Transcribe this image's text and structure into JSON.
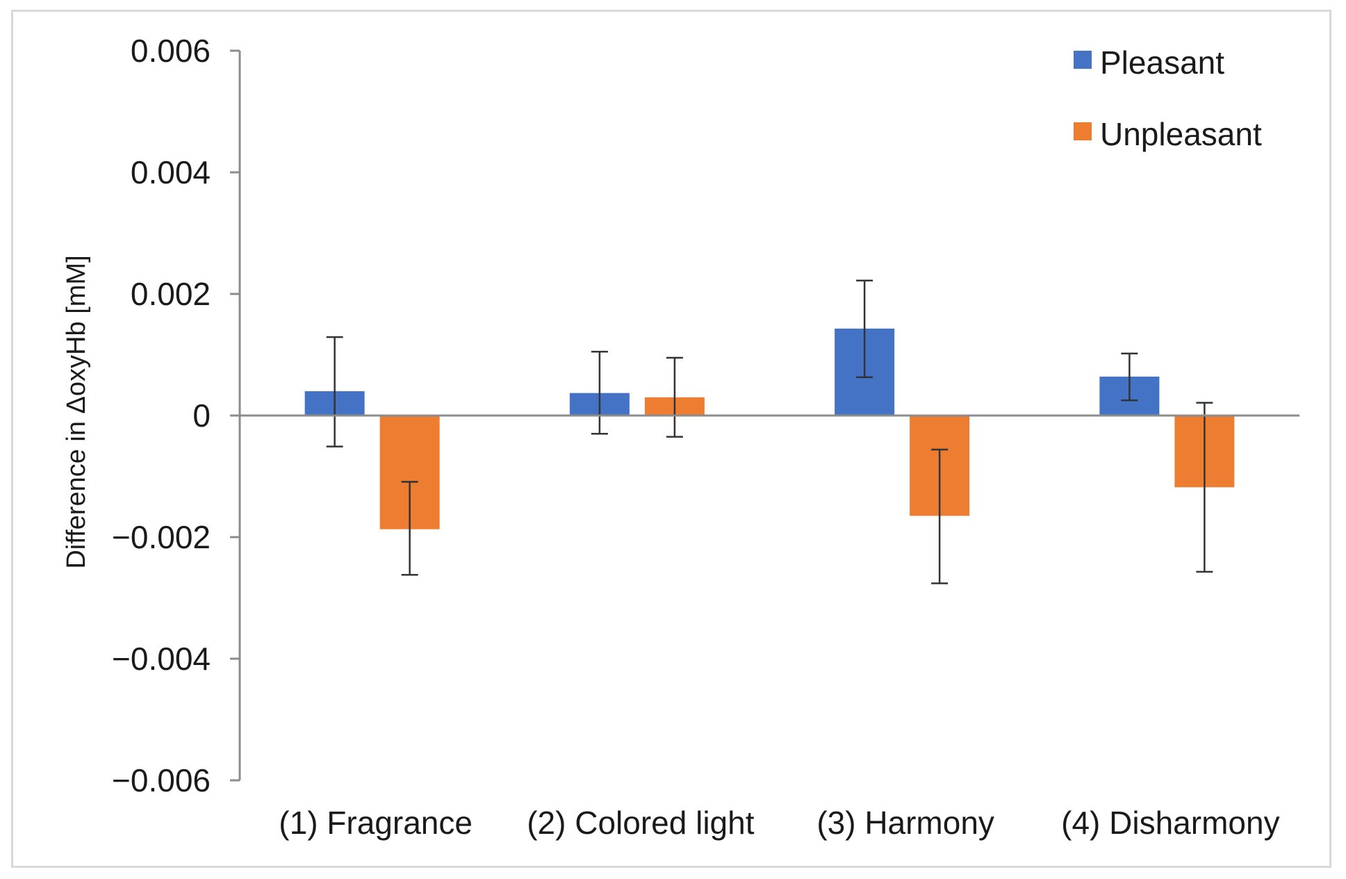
{
  "chart_data": {
    "type": "bar",
    "ylabel": "Difference in ΔoxyHb [mM]",
    "categories": [
      "(1) Fragrance",
      "(2) Colored light",
      "(3) Harmony",
      "(4) Disharmony"
    ],
    "ylim": [
      -0.006,
      0.006
    ],
    "yticks": [
      0.006,
      0.004,
      0.002,
      0,
      -0.002,
      -0.004,
      -0.006
    ],
    "ytick_labels": [
      "0.006",
      "0.004",
      "0.002",
      "0",
      "−0.002",
      "−0.004",
      "−0.006"
    ],
    "legend_position": "top-right",
    "grid": false,
    "series": [
      {
        "name": "Pleasant",
        "color": "#4472c4",
        "values": [
          0.0004,
          0.00037,
          0.00143,
          0.00064
        ],
        "error_low": [
          -0.00051,
          -0.0003,
          0.00063,
          0.00025
        ],
        "error_high": [
          0.00129,
          0.00105,
          0.00222,
          0.00102
        ]
      },
      {
        "name": "Unpleasant",
        "color": "#ed7d31",
        "values": [
          -0.00187,
          0.0003,
          -0.00165,
          -0.00118
        ],
        "error_low": [
          -0.00262,
          -0.00035,
          -0.00276,
          -0.00257
        ],
        "error_high": [
          -0.00109,
          0.00095,
          -0.00056,
          0.00021
        ]
      }
    ]
  }
}
